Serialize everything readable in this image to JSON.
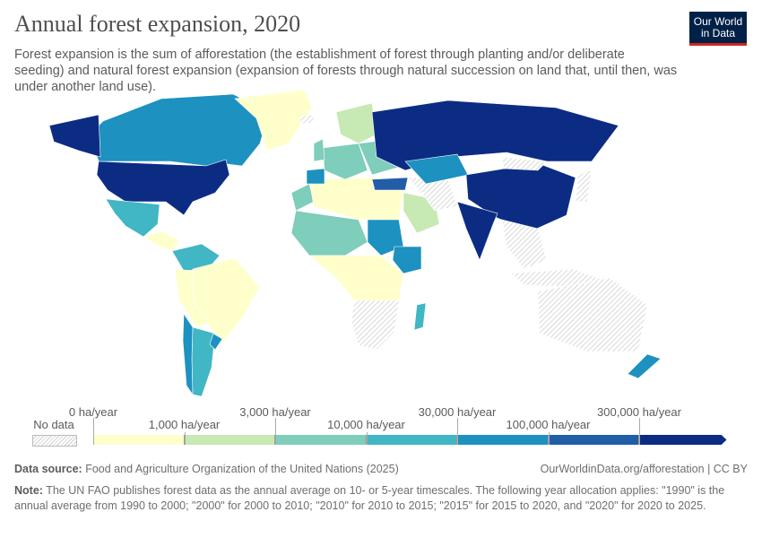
{
  "title": "Annual forest expansion, 2020",
  "subtitle": "Forest expansion is the sum of afforestation (the establishment of forest through planting and/or deliberate seeding) and natural forest expansion (expansion of forests through natural succession on land that, until then, was under another land use).",
  "logo": "Our World in Data",
  "legend": {
    "no_data": "No data",
    "labels": [
      "0 ha/year",
      "1,000 ha/year",
      "3,000 ha/year",
      "10,000 ha/year",
      "30,000 ha/year",
      "100,000 ha/year",
      "300,000 ha/year"
    ],
    "colors": [
      "#ffffcc",
      "#c7e9b4",
      "#7fcdbb",
      "#41b6c4",
      "#1d91c0",
      "#225ea8",
      "#0c2c84"
    ],
    "no_data_color": "hatched-grey"
  },
  "map": {
    "regions": [
      {
        "name": "Canada",
        "bin": 4
      },
      {
        "name": "United States",
        "bin": 6
      },
      {
        "name": "Greenland",
        "bin": 0
      },
      {
        "name": "Mexico",
        "bin": 3
      },
      {
        "name": "Central America",
        "bin": 0
      },
      {
        "name": "Colombia & Venezuela",
        "bin": 3
      },
      {
        "name": "Brazil",
        "bin": 0
      },
      {
        "name": "Peru & Bolivia",
        "bin": 0
      },
      {
        "name": "Argentina",
        "bin": 3
      },
      {
        "name": "Chile",
        "bin": 4
      },
      {
        "name": "Uruguay",
        "bin": 4
      },
      {
        "name": "Morocco",
        "bin": 2
      },
      {
        "name": "North Africa",
        "bin": 0
      },
      {
        "name": "Sahel",
        "bin": 2
      },
      {
        "name": "Sudan",
        "bin": 4
      },
      {
        "name": "Ethiopia",
        "bin": 4
      },
      {
        "name": "Central Africa",
        "bin": 0
      },
      {
        "name": "Southern Africa",
        "bin": -1
      },
      {
        "name": "Madagascar",
        "bin": 3
      },
      {
        "name": "Spain",
        "bin": 4
      },
      {
        "name": "Western Europe",
        "bin": 2
      },
      {
        "name": "Scandinavia",
        "bin": 1
      },
      {
        "name": "Eastern Europe",
        "bin": 2
      },
      {
        "name": "Turkey",
        "bin": 5
      },
      {
        "name": "Saudi Arabia",
        "bin": 1
      },
      {
        "name": "Iran",
        "bin": -1
      },
      {
        "name": "Russia",
        "bin": 6
      },
      {
        "name": "Kazakhstan",
        "bin": 4
      },
      {
        "name": "China",
        "bin": 6
      },
      {
        "name": "Mongolia",
        "bin": -1
      },
      {
        "name": "India",
        "bin": 6
      },
      {
        "name": "Southeast Asia",
        "bin": -1
      },
      {
        "name": "Japan",
        "bin": -1
      },
      {
        "name": "Indonesia",
        "bin": -1
      },
      {
        "name": "Australia",
        "bin": -1
      },
      {
        "name": "New Zealand",
        "bin": 4
      },
      {
        "name": "Iceland",
        "bin": -1
      },
      {
        "name": "United Kingdom",
        "bin": 2
      }
    ]
  },
  "footer": {
    "source_label": "Data source:",
    "source": "Food and Agriculture Organization of the United Nations (2025)",
    "url": "OurWorldinData.org/afforestation | CC BY",
    "note_label": "Note:",
    "note": "The UN FAO publishes forest data as the annual average on 10- or 5-year timescales. The following year allocation applies: \"1990\" is the annual average from 1990 to 2000; \"2000\" for 2000 to 2010; \"2010\" for 2010 to 2015; \"2015\" for 2015 to 2020, and \"2020\" for 2020 to 2025."
  }
}
